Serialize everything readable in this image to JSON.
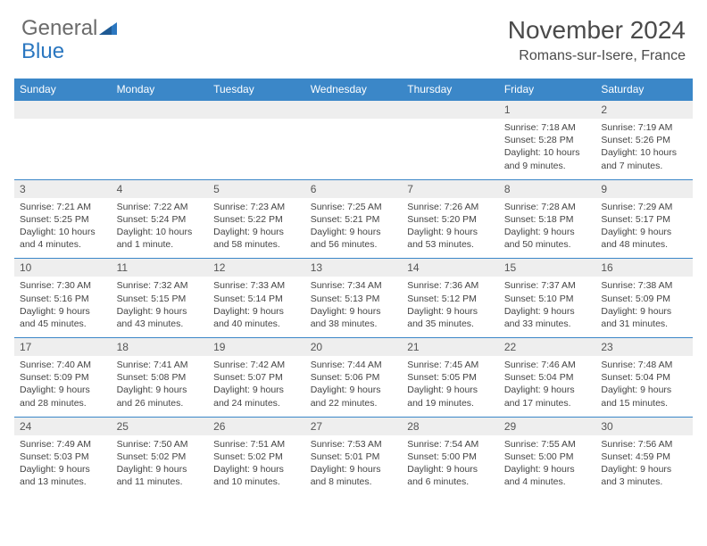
{
  "logo": {
    "text1": "General",
    "text2": "Blue"
  },
  "title": "November 2024",
  "location": "Romans-sur-Isere, France",
  "colors": {
    "header_bar": "#3b87c8",
    "day_num_bg": "#eeeeee",
    "row_border": "#3b87c8",
    "logo_gray": "#6b6b6b",
    "logo_blue": "#2b77c0"
  },
  "weekdays": [
    "Sunday",
    "Monday",
    "Tuesday",
    "Wednesday",
    "Thursday",
    "Friday",
    "Saturday"
  ],
  "weeks": [
    [
      null,
      null,
      null,
      null,
      null,
      {
        "n": "1",
        "sunrise": "Sunrise: 7:18 AM",
        "sunset": "Sunset: 5:28 PM",
        "daylight": "Daylight: 10 hours and 9 minutes."
      },
      {
        "n": "2",
        "sunrise": "Sunrise: 7:19 AM",
        "sunset": "Sunset: 5:26 PM",
        "daylight": "Daylight: 10 hours and 7 minutes."
      }
    ],
    [
      {
        "n": "3",
        "sunrise": "Sunrise: 7:21 AM",
        "sunset": "Sunset: 5:25 PM",
        "daylight": "Daylight: 10 hours and 4 minutes."
      },
      {
        "n": "4",
        "sunrise": "Sunrise: 7:22 AM",
        "sunset": "Sunset: 5:24 PM",
        "daylight": "Daylight: 10 hours and 1 minute."
      },
      {
        "n": "5",
        "sunrise": "Sunrise: 7:23 AM",
        "sunset": "Sunset: 5:22 PM",
        "daylight": "Daylight: 9 hours and 58 minutes."
      },
      {
        "n": "6",
        "sunrise": "Sunrise: 7:25 AM",
        "sunset": "Sunset: 5:21 PM",
        "daylight": "Daylight: 9 hours and 56 minutes."
      },
      {
        "n": "7",
        "sunrise": "Sunrise: 7:26 AM",
        "sunset": "Sunset: 5:20 PM",
        "daylight": "Daylight: 9 hours and 53 minutes."
      },
      {
        "n": "8",
        "sunrise": "Sunrise: 7:28 AM",
        "sunset": "Sunset: 5:18 PM",
        "daylight": "Daylight: 9 hours and 50 minutes."
      },
      {
        "n": "9",
        "sunrise": "Sunrise: 7:29 AM",
        "sunset": "Sunset: 5:17 PM",
        "daylight": "Daylight: 9 hours and 48 minutes."
      }
    ],
    [
      {
        "n": "10",
        "sunrise": "Sunrise: 7:30 AM",
        "sunset": "Sunset: 5:16 PM",
        "daylight": "Daylight: 9 hours and 45 minutes."
      },
      {
        "n": "11",
        "sunrise": "Sunrise: 7:32 AM",
        "sunset": "Sunset: 5:15 PM",
        "daylight": "Daylight: 9 hours and 43 minutes."
      },
      {
        "n": "12",
        "sunrise": "Sunrise: 7:33 AM",
        "sunset": "Sunset: 5:14 PM",
        "daylight": "Daylight: 9 hours and 40 minutes."
      },
      {
        "n": "13",
        "sunrise": "Sunrise: 7:34 AM",
        "sunset": "Sunset: 5:13 PM",
        "daylight": "Daylight: 9 hours and 38 minutes."
      },
      {
        "n": "14",
        "sunrise": "Sunrise: 7:36 AM",
        "sunset": "Sunset: 5:12 PM",
        "daylight": "Daylight: 9 hours and 35 minutes."
      },
      {
        "n": "15",
        "sunrise": "Sunrise: 7:37 AM",
        "sunset": "Sunset: 5:10 PM",
        "daylight": "Daylight: 9 hours and 33 minutes."
      },
      {
        "n": "16",
        "sunrise": "Sunrise: 7:38 AM",
        "sunset": "Sunset: 5:09 PM",
        "daylight": "Daylight: 9 hours and 31 minutes."
      }
    ],
    [
      {
        "n": "17",
        "sunrise": "Sunrise: 7:40 AM",
        "sunset": "Sunset: 5:09 PM",
        "daylight": "Daylight: 9 hours and 28 minutes."
      },
      {
        "n": "18",
        "sunrise": "Sunrise: 7:41 AM",
        "sunset": "Sunset: 5:08 PM",
        "daylight": "Daylight: 9 hours and 26 minutes."
      },
      {
        "n": "19",
        "sunrise": "Sunrise: 7:42 AM",
        "sunset": "Sunset: 5:07 PM",
        "daylight": "Daylight: 9 hours and 24 minutes."
      },
      {
        "n": "20",
        "sunrise": "Sunrise: 7:44 AM",
        "sunset": "Sunset: 5:06 PM",
        "daylight": "Daylight: 9 hours and 22 minutes."
      },
      {
        "n": "21",
        "sunrise": "Sunrise: 7:45 AM",
        "sunset": "Sunset: 5:05 PM",
        "daylight": "Daylight: 9 hours and 19 minutes."
      },
      {
        "n": "22",
        "sunrise": "Sunrise: 7:46 AM",
        "sunset": "Sunset: 5:04 PM",
        "daylight": "Daylight: 9 hours and 17 minutes."
      },
      {
        "n": "23",
        "sunrise": "Sunrise: 7:48 AM",
        "sunset": "Sunset: 5:04 PM",
        "daylight": "Daylight: 9 hours and 15 minutes."
      }
    ],
    [
      {
        "n": "24",
        "sunrise": "Sunrise: 7:49 AM",
        "sunset": "Sunset: 5:03 PM",
        "daylight": "Daylight: 9 hours and 13 minutes."
      },
      {
        "n": "25",
        "sunrise": "Sunrise: 7:50 AM",
        "sunset": "Sunset: 5:02 PM",
        "daylight": "Daylight: 9 hours and 11 minutes."
      },
      {
        "n": "26",
        "sunrise": "Sunrise: 7:51 AM",
        "sunset": "Sunset: 5:02 PM",
        "daylight": "Daylight: 9 hours and 10 minutes."
      },
      {
        "n": "27",
        "sunrise": "Sunrise: 7:53 AM",
        "sunset": "Sunset: 5:01 PM",
        "daylight": "Daylight: 9 hours and 8 minutes."
      },
      {
        "n": "28",
        "sunrise": "Sunrise: 7:54 AM",
        "sunset": "Sunset: 5:00 PM",
        "daylight": "Daylight: 9 hours and 6 minutes."
      },
      {
        "n": "29",
        "sunrise": "Sunrise: 7:55 AM",
        "sunset": "Sunset: 5:00 PM",
        "daylight": "Daylight: 9 hours and 4 minutes."
      },
      {
        "n": "30",
        "sunrise": "Sunrise: 7:56 AM",
        "sunset": "Sunset: 4:59 PM",
        "daylight": "Daylight: 9 hours and 3 minutes."
      }
    ]
  ]
}
